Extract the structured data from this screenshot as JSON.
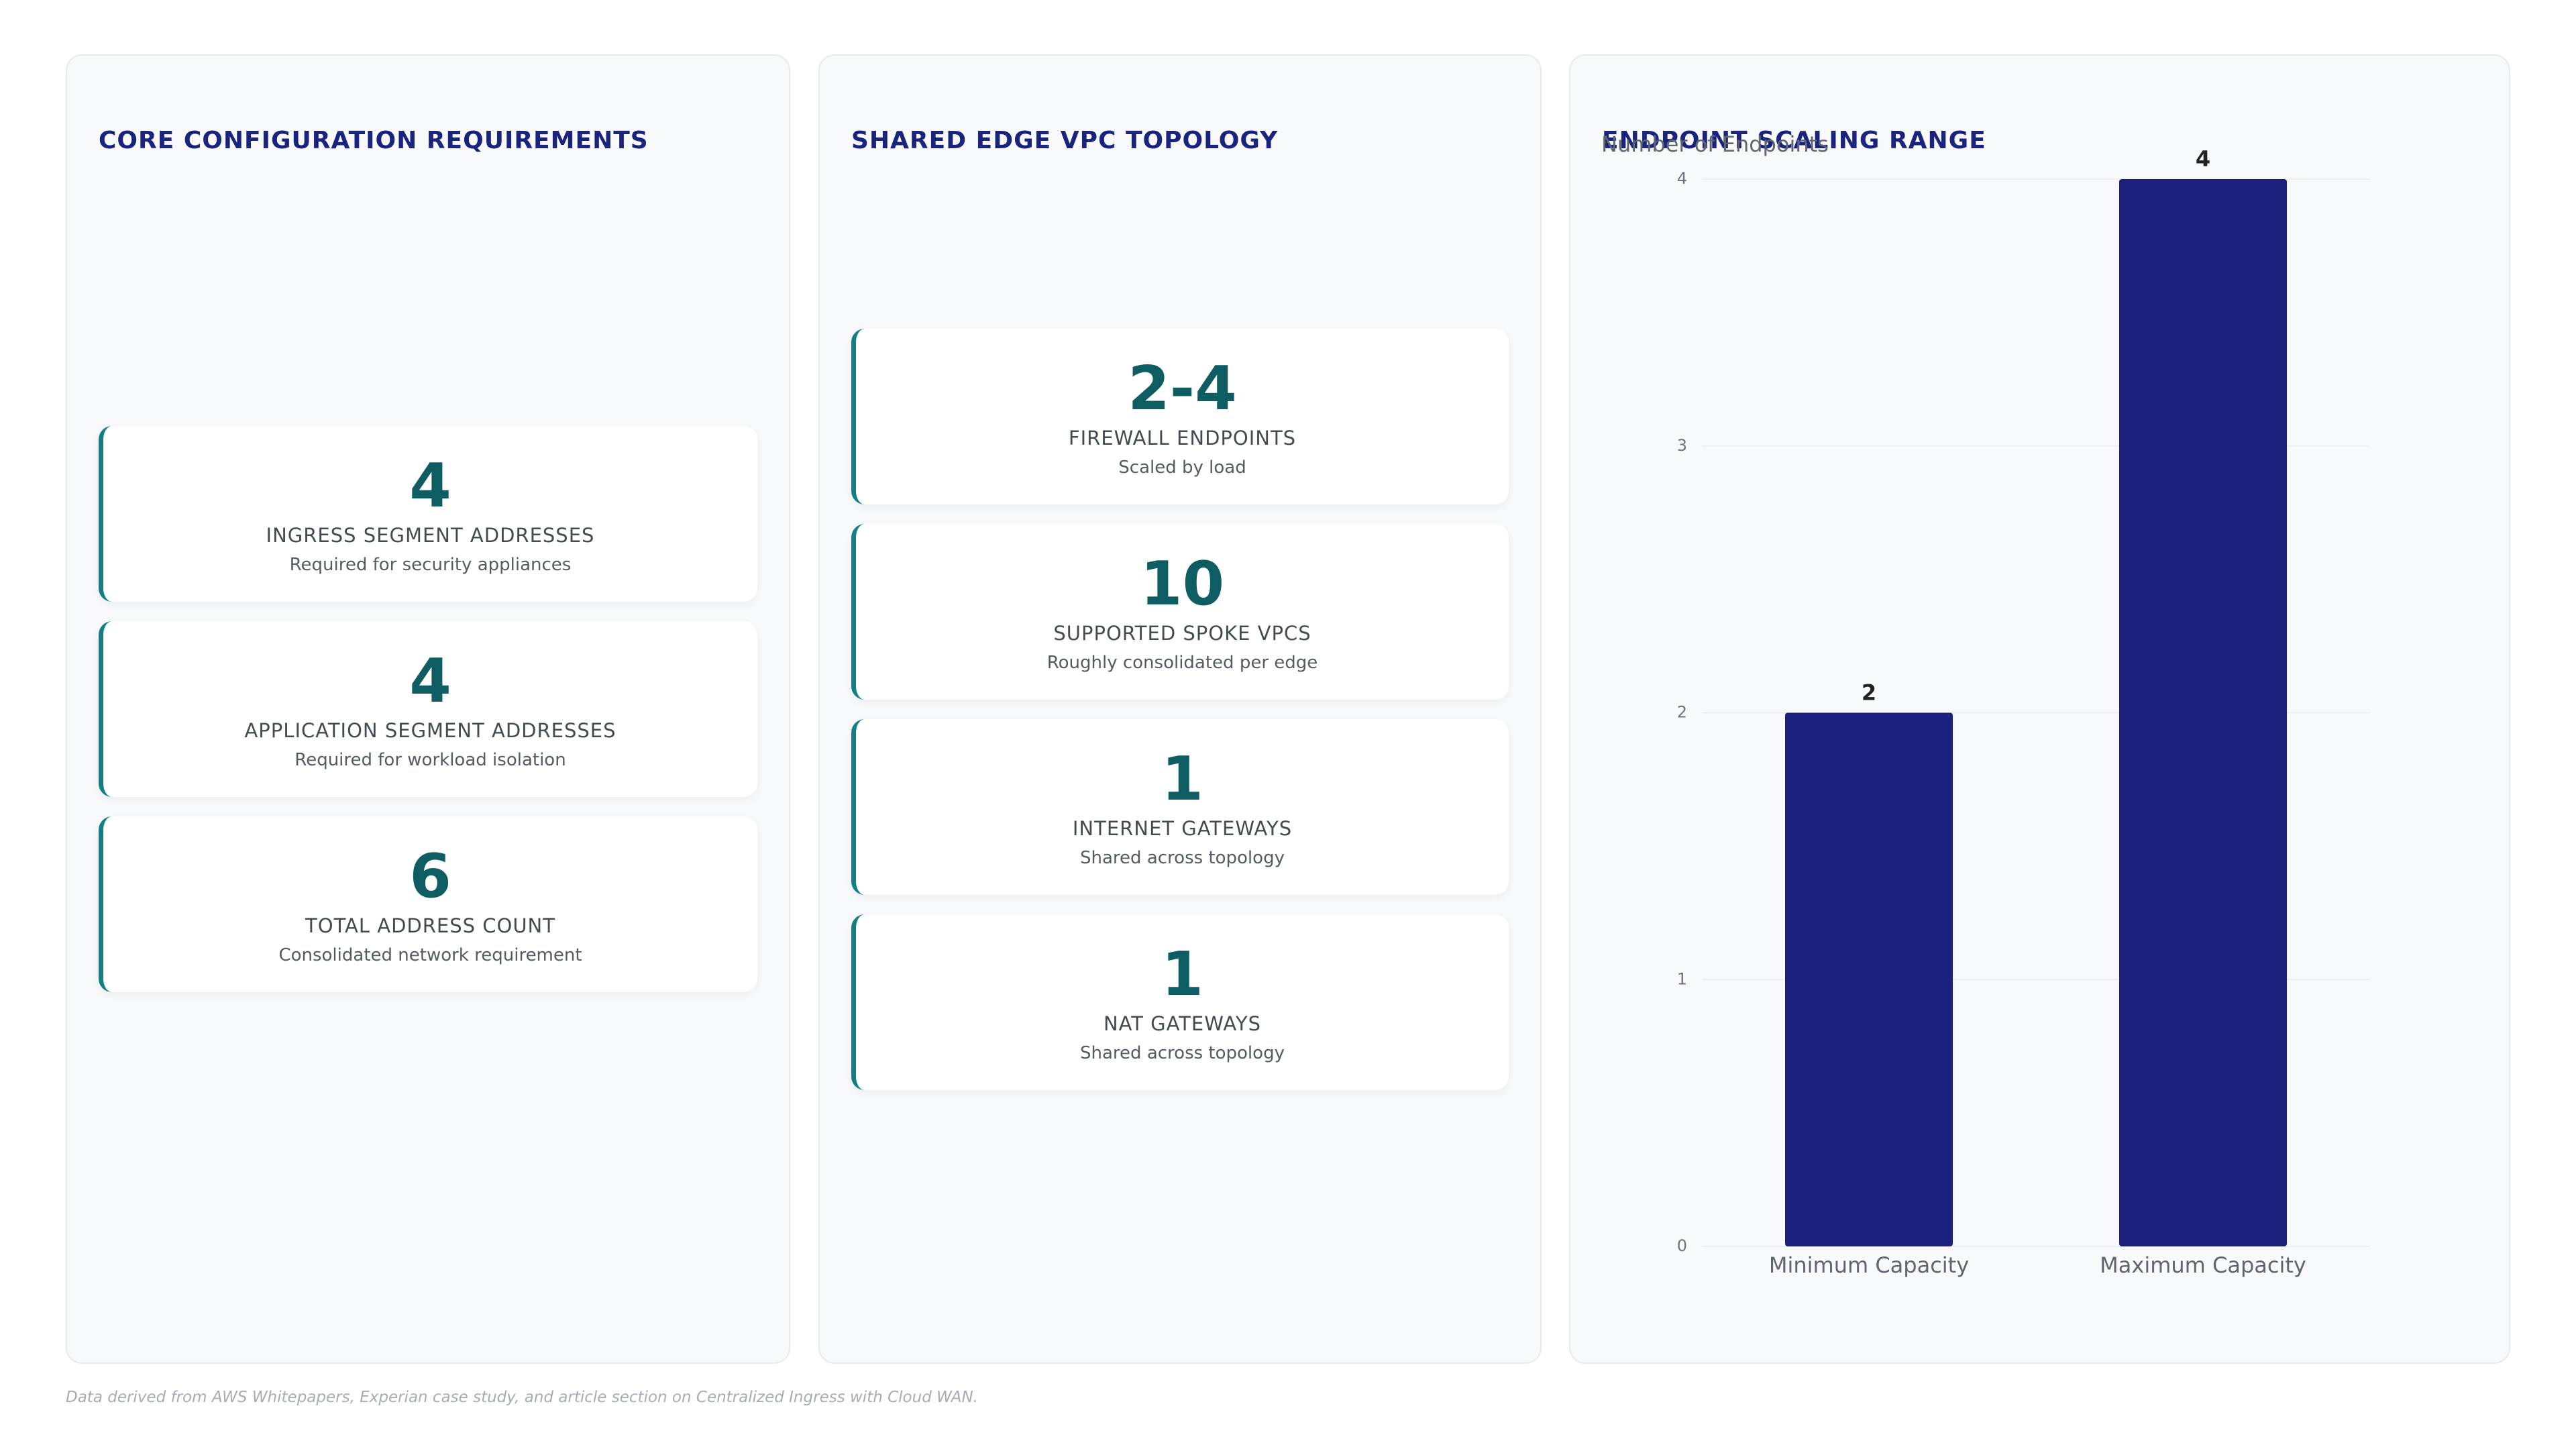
{
  "panels": [
    {
      "title": "CORE CONFIGURATION REQUIREMENTS",
      "cards": [
        {
          "value": 4,
          "label": "INGRESS SEGMENT ADDRESSES",
          "note": "Required for security appliances"
        },
        {
          "value": 4,
          "label": "APPLICATION SEGMENT ADDRESSES",
          "note": "Required for workload isolation"
        },
        {
          "value": 6,
          "label": "TOTAL ADDRESS COUNT",
          "note": "Consolidated network requirement"
        }
      ]
    },
    {
      "title": "SHARED EDGE VPC TOPOLOGY",
      "cards": [
        {
          "value": "2-4",
          "label": "FIREWALL ENDPOINTS",
          "note": "Scaled by load"
        },
        {
          "value": 10,
          "label": "SUPPORTED SPOKE VPCS",
          "note": "Roughly consolidated per edge"
        },
        {
          "value": 1,
          "label": "INTERNET GATEWAYS",
          "note": "Shared across topology"
        },
        {
          "value": 1,
          "label": "NAT GATEWAYS",
          "note": "Shared across topology"
        }
      ]
    }
  ],
  "chart_data": {
    "type": "bar",
    "title": "ENDPOINT SCALING RANGE",
    "y_label": "Number of Endpoints",
    "categories": [
      "Minimum Capacity",
      "Maximum Capacity"
    ],
    "values": [
      2,
      4
    ],
    "color": "#1b217c",
    "ylim": [
      0,
      4
    ],
    "yticks": [
      0,
      1,
      2,
      3,
      4
    ],
    "grid": true
  },
  "footnote": "Data derived from AWS Whitepapers, Experian case study, and article section on Centralized Ingress with Cloud WAN."
}
